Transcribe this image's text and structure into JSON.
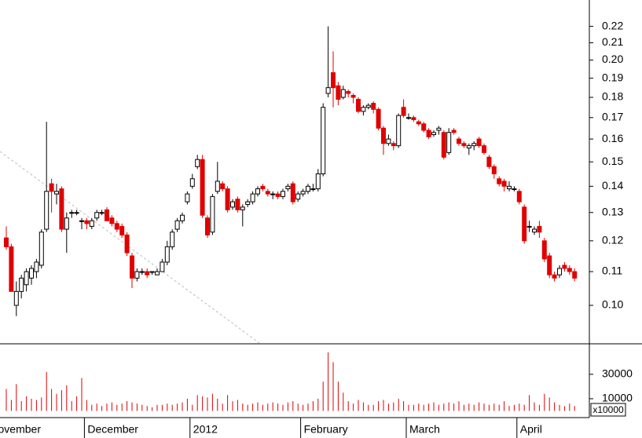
{
  "chart_data": {
    "type": "candlestick",
    "categories": [
      "November",
      null,
      null,
      null,
      null,
      null,
      null,
      null,
      null,
      null,
      null,
      null,
      null,
      null,
      null,
      null,
      "December",
      null,
      null,
      null,
      null,
      null,
      null,
      null,
      null,
      null,
      null,
      null,
      null,
      null,
      null,
      null,
      null,
      null,
      null,
      null,
      null,
      "2012",
      null,
      null,
      null,
      null,
      null,
      null,
      null,
      null,
      null,
      null,
      null,
      null,
      null,
      null,
      null,
      null,
      null,
      null,
      null,
      null,
      null,
      "February",
      null,
      null,
      null,
      null,
      null,
      null,
      null,
      null,
      null,
      null,
      null,
      null,
      null,
      null,
      null,
      null,
      null,
      null,
      null,
      null,
      "March",
      null,
      null,
      null,
      null,
      null,
      null,
      null,
      null,
      null,
      null,
      null,
      null,
      null,
      null,
      null,
      null,
      null,
      null,
      null,
      null,
      null,
      "April",
      null,
      null,
      null,
      null,
      null,
      null,
      null,
      null,
      null,
      null,
      null
    ],
    "open": [
      0.121,
      0.118,
      0.1,
      0.104,
      0.106,
      0.108,
      0.11,
      0.112,
      0.124,
      0.141,
      0.137,
      0.139,
      0.124,
      0.13,
      0.13,
      0.127,
      0.127,
      0.125,
      0.128,
      0.13,
      0.131,
      0.128,
      0.126,
      0.125,
      0.122,
      0.115,
      0.108,
      0.11,
      0.11,
      0.11,
      0.109,
      0.11,
      0.113,
      0.118,
      0.124,
      0.127,
      0.134,
      0.14,
      0.148,
      0.151,
      0.128,
      0.123,
      0.138,
      0.141,
      0.139,
      0.132,
      0.135,
      0.131,
      0.133,
      0.134,
      0.137,
      0.14,
      0.138,
      0.137,
      0.137,
      0.136,
      0.139,
      0.141,
      0.135,
      0.137,
      0.138,
      0.139,
      0.139,
      0.145,
      0.182,
      0.193,
      0.186,
      0.18,
      0.183,
      0.181,
      0.179,
      0.173,
      0.175,
      0.177,
      0.174,
      0.165,
      0.158,
      0.158,
      0.157,
      0.175,
      0.17,
      0.17,
      0.168,
      0.167,
      0.164,
      0.162,
      0.164,
      0.163,
      0.154,
      0.164,
      0.16,
      0.158,
      0.156,
      0.157,
      0.16,
      0.157,
      0.152,
      0.148,
      0.143,
      0.142,
      0.139,
      0.139,
      0.138,
      0.132,
      0.125,
      0.123,
      0.125,
      0.12,
      0.115,
      0.109,
      0.109,
      0.112,
      0.111,
      0.11
    ],
    "high": [
      0.125,
      0.119,
      0.107,
      0.109,
      0.111,
      0.112,
      0.114,
      0.124,
      0.168,
      0.143,
      0.141,
      0.14,
      0.13,
      0.131,
      0.131,
      0.128,
      0.128,
      0.128,
      0.131,
      0.131,
      0.132,
      0.129,
      0.127,
      0.126,
      0.123,
      0.116,
      0.111,
      0.111,
      0.111,
      0.11,
      0.111,
      0.114,
      0.12,
      0.124,
      0.128,
      0.13,
      0.138,
      0.145,
      0.153,
      0.153,
      0.129,
      0.137,
      0.15,
      0.142,
      0.14,
      0.135,
      0.136,
      0.133,
      0.135,
      0.138,
      0.14,
      0.141,
      0.139,
      0.138,
      0.138,
      0.139,
      0.141,
      0.142,
      0.138,
      0.139,
      0.141,
      0.141,
      0.147,
      0.177,
      0.22,
      0.205,
      0.188,
      0.186,
      0.184,
      0.182,
      0.18,
      0.176,
      0.177,
      0.178,
      0.175,
      0.166,
      0.162,
      0.159,
      0.172,
      0.179,
      0.172,
      0.171,
      0.169,
      0.168,
      0.165,
      0.164,
      0.166,
      0.164,
      0.165,
      0.165,
      0.161,
      0.159,
      0.158,
      0.159,
      0.161,
      0.158,
      0.153,
      0.149,
      0.144,
      0.143,
      0.142,
      0.14,
      0.139,
      0.133,
      0.127,
      0.125,
      0.127,
      0.121,
      0.116,
      0.11,
      0.112,
      0.113,
      0.112,
      0.111
    ],
    "low": [
      0.117,
      0.104,
      0.097,
      0.102,
      0.104,
      0.106,
      0.108,
      0.111,
      0.123,
      0.13,
      0.133,
      0.123,
      0.116,
      0.128,
      0.129,
      0.124,
      0.124,
      0.124,
      0.127,
      0.129,
      0.127,
      0.125,
      0.123,
      0.121,
      0.115,
      0.105,
      0.107,
      0.109,
      0.108,
      0.109,
      0.109,
      0.11,
      0.112,
      0.117,
      0.123,
      0.126,
      0.133,
      0.139,
      0.147,
      0.128,
      0.121,
      0.122,
      0.137,
      0.138,
      0.13,
      0.131,
      0.13,
      0.125,
      0.132,
      0.133,
      0.136,
      0.138,
      0.136,
      0.135,
      0.135,
      0.135,
      0.138,
      0.133,
      0.134,
      0.136,
      0.137,
      0.138,
      0.138,
      0.144,
      0.18,
      0.175,
      0.176,
      0.179,
      0.18,
      0.177,
      0.172,
      0.171,
      0.174,
      0.172,
      0.164,
      0.153,
      0.157,
      0.155,
      0.156,
      0.17,
      0.169,
      0.168,
      0.166,
      0.163,
      0.16,
      0.161,
      0.162,
      0.151,
      0.153,
      0.162,
      0.157,
      0.156,
      0.153,
      0.155,
      0.156,
      0.153,
      0.147,
      0.143,
      0.14,
      0.138,
      0.138,
      0.138,
      0.133,
      0.119,
      0.123,
      0.122,
      0.121,
      0.113,
      0.108,
      0.107,
      0.108,
      0.11,
      0.109,
      0.107
    ],
    "close": [
      0.118,
      0.104,
      0.104,
      0.108,
      0.11,
      0.111,
      0.113,
      0.123,
      0.138,
      0.138,
      0.138,
      0.124,
      0.128,
      0.13,
      0.13,
      0.127,
      0.126,
      0.127,
      0.13,
      0.13,
      0.127,
      0.126,
      0.124,
      0.122,
      0.116,
      0.108,
      0.11,
      0.11,
      0.109,
      0.11,
      0.11,
      0.113,
      0.118,
      0.123,
      0.127,
      0.129,
      0.137,
      0.143,
      0.151,
      0.129,
      0.122,
      0.136,
      0.142,
      0.139,
      0.131,
      0.134,
      0.131,
      0.132,
      0.134,
      0.137,
      0.139,
      0.139,
      0.137,
      0.137,
      0.136,
      0.138,
      0.14,
      0.134,
      0.137,
      0.138,
      0.14,
      0.139,
      0.145,
      0.175,
      0.185,
      0.185,
      0.179,
      0.184,
      0.182,
      0.18,
      0.173,
      0.175,
      0.176,
      0.174,
      0.165,
      0.158,
      0.16,
      0.157,
      0.171,
      0.171,
      0.17,
      0.169,
      0.167,
      0.164,
      0.161,
      0.163,
      0.165,
      0.152,
      0.163,
      0.163,
      0.158,
      0.157,
      0.157,
      0.158,
      0.157,
      0.154,
      0.148,
      0.145,
      0.141,
      0.14,
      0.14,
      0.139,
      0.134,
      0.12,
      0.125,
      0.124,
      0.123,
      0.114,
      0.109,
      0.108,
      0.111,
      0.111,
      0.11,
      0.108
    ],
    "volume": [
      18000,
      9000,
      22000,
      8000,
      12000,
      10000,
      9000,
      11000,
      32000,
      18000,
      14000,
      17000,
      21000,
      8000,
      12000,
      27000,
      9000,
      5000,
      6000,
      4000,
      6000,
      7000,
      5000,
      6000,
      8000,
      7000,
      6000,
      5000,
      4000,
      3000,
      5000,
      5000,
      6000,
      5000,
      6000,
      7000,
      10000,
      5000,
      13000,
      12000,
      11000,
      14000,
      10000,
      6000,
      13000,
      8000,
      9000,
      6000,
      5000,
      6000,
      7000,
      5000,
      6000,
      7000,
      6000,
      5000,
      7000,
      8000,
      6000,
      5000,
      6000,
      8000,
      10000,
      24000,
      48000,
      40000,
      24000,
      15000,
      8000,
      6000,
      9000,
      7000,
      5000,
      5000,
      8000,
      9000,
      6000,
      7000,
      10000,
      8000,
      5000,
      5000,
      6000,
      5000,
      6000,
      7000,
      5000,
      6000,
      7000,
      6000,
      8000,
      5000,
      6000,
      5000,
      7000,
      6000,
      5000,
      6000,
      5000,
      8000,
      4000,
      5000,
      6000,
      5000,
      13000,
      7000,
      5000,
      14000,
      11000,
      7000,
      5000,
      4000,
      6000,
      4000
    ],
    "up_color": "#ffffff",
    "down_color": "#e00000",
    "volume_color": "#e00000",
    "log_scale": true,
    "ylim": [
      0.0897,
      0.237
    ],
    "yticks": [
      {
        "value": 0.1,
        "label": "0.10"
      },
      0.11,
      0.12,
      0.13,
      0.14,
      0.15,
      0.16,
      0.17,
      0.18,
      0.19,
      {
        "value": 0.2,
        "label": "0.20"
      },
      0.21,
      0.22
    ],
    "volume_ylim": [
      0,
      55000
    ],
    "volume_yticks": [
      10000,
      30000
    ],
    "volume_unit": "x10000"
  }
}
